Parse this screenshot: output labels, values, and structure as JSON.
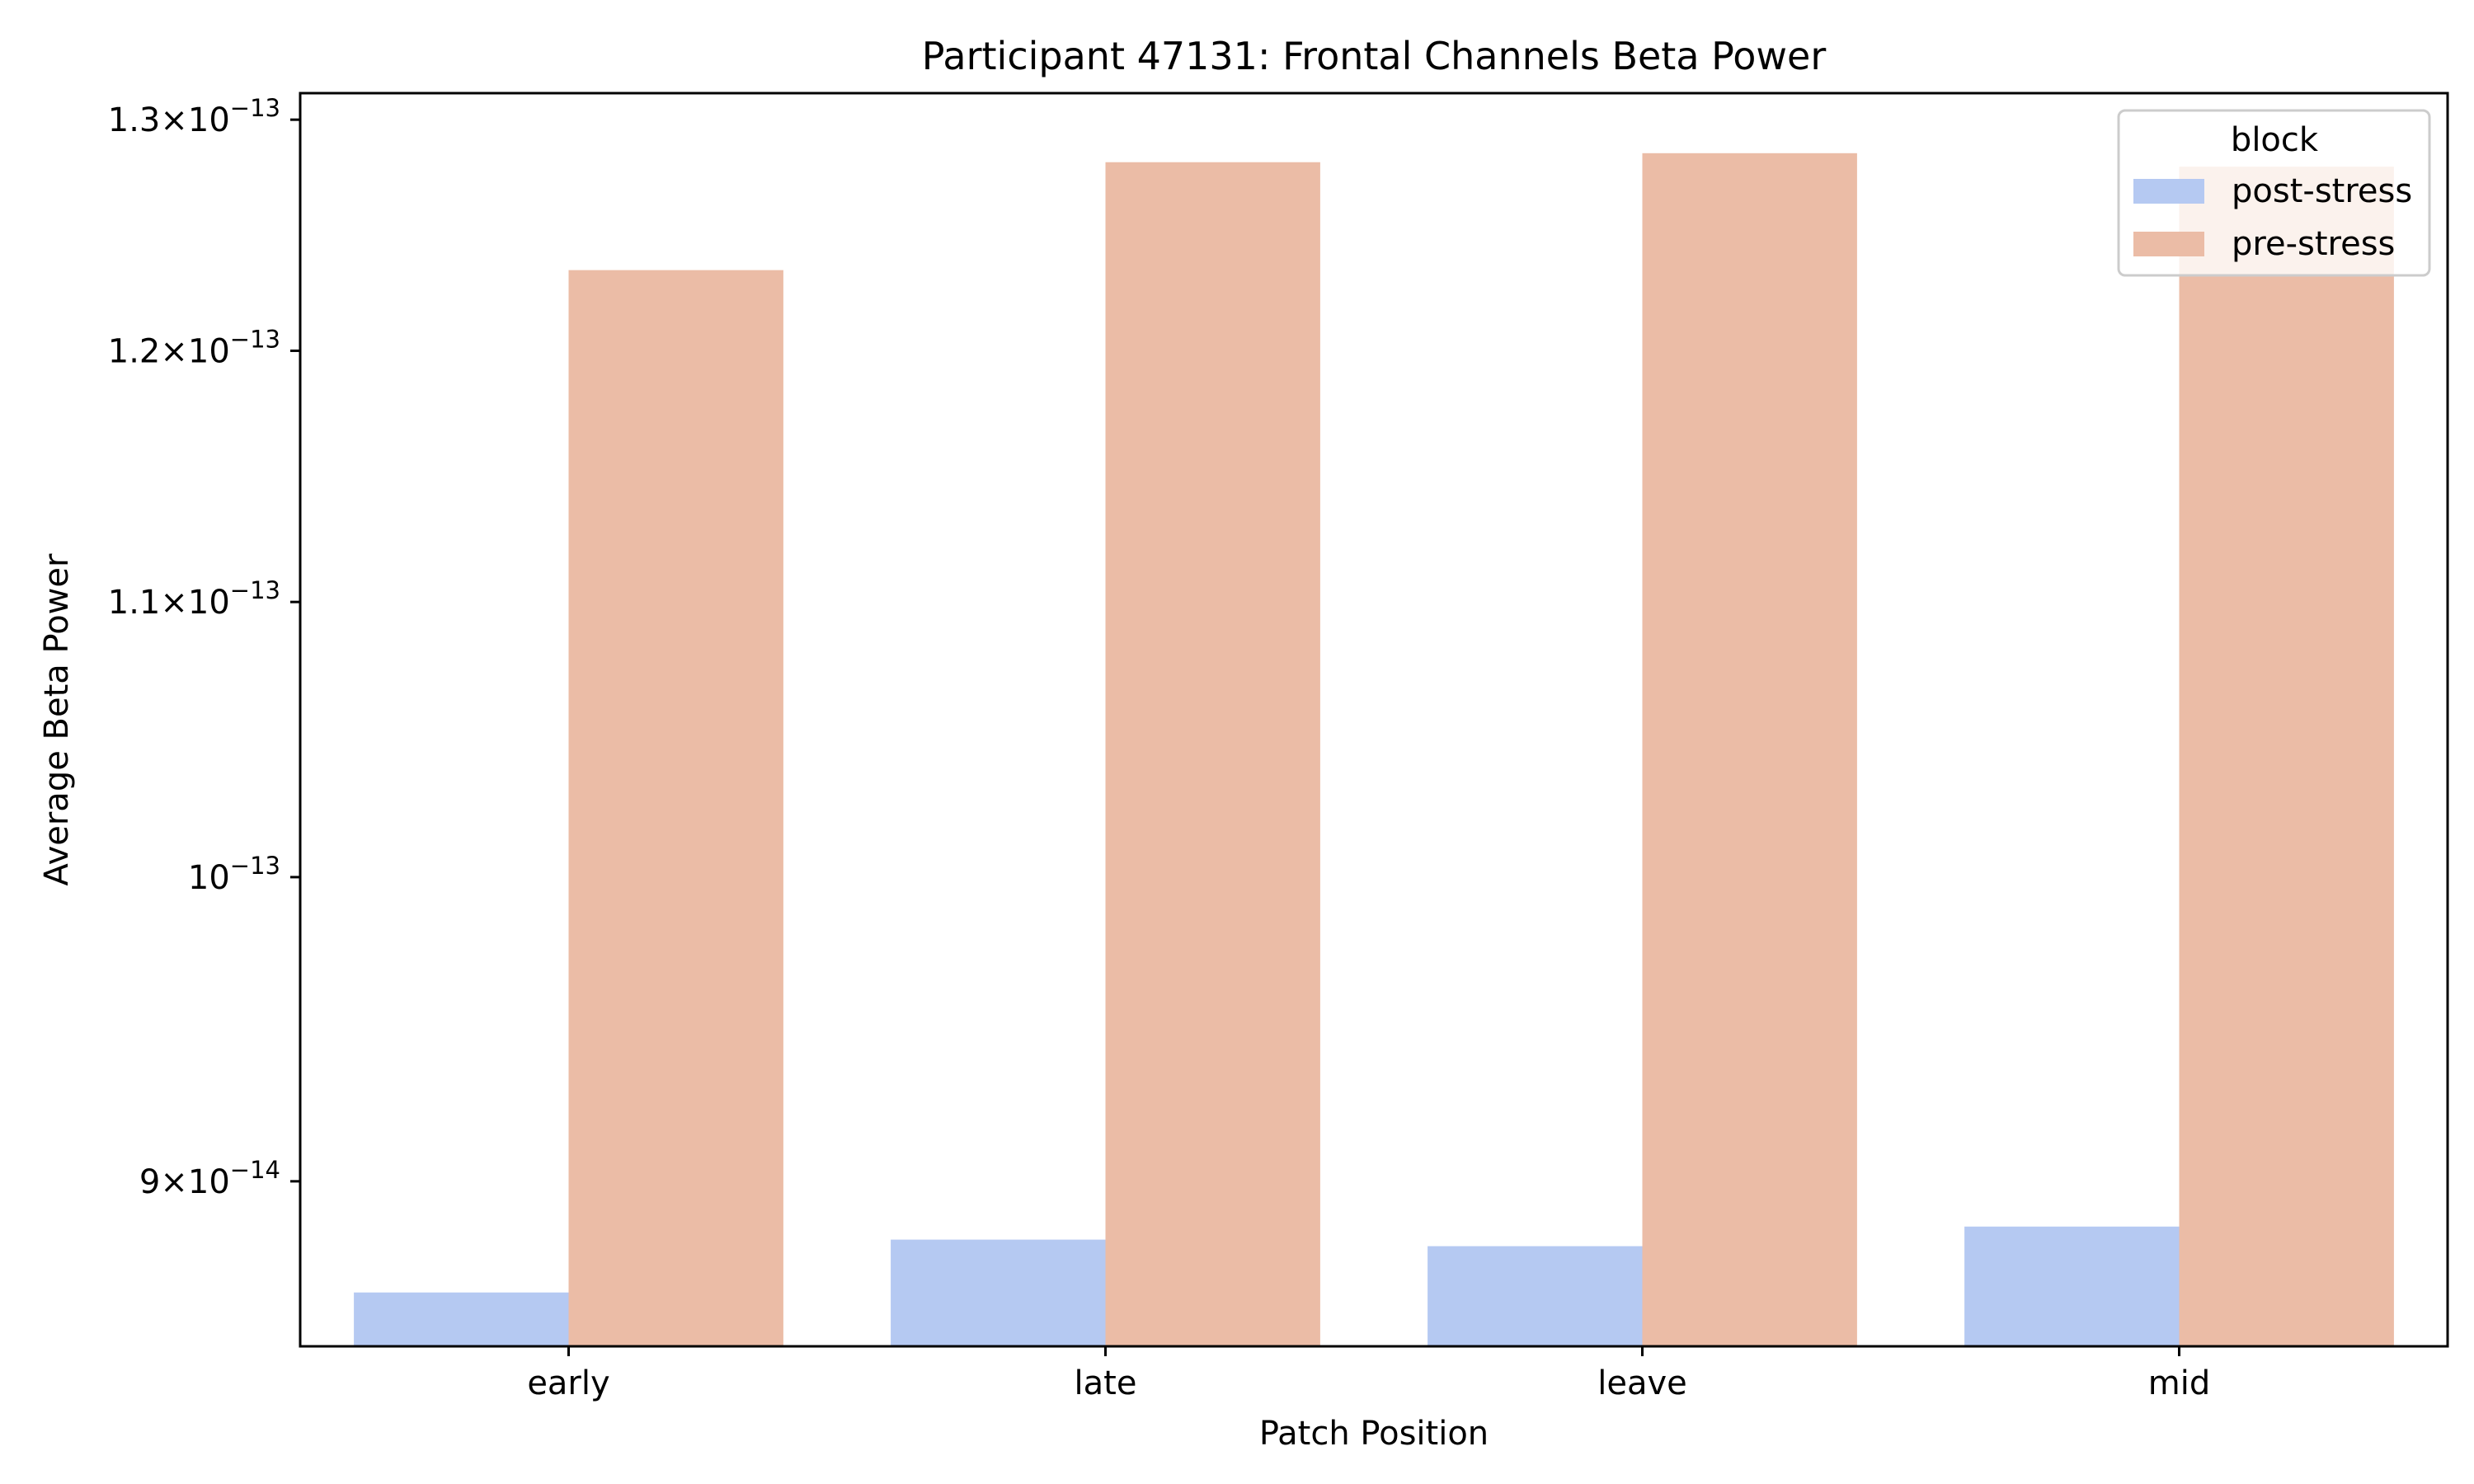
{
  "chart_data": {
    "type": "bar",
    "title": "Participant 47131: Frontal Channels Beta Power",
    "xlabel": "Patch Position",
    "ylabel": "Average Beta Power",
    "categories": [
      "early",
      "late",
      "leave",
      "mid"
    ],
    "series": [
      {
        "name": "post-stress",
        "color": "#b5c9f2",
        "values": [
          8.66e-14,
          8.82e-14,
          8.8e-14,
          8.86e-14
        ]
      },
      {
        "name": "pre-stress",
        "color": "#ebbca6",
        "values": [
          1.234e-13,
          1.281e-13,
          1.285e-13,
          1.279e-13
        ]
      }
    ],
    "y_scale": "log",
    "ylim": [
      8.5e-14,
      1.312e-13
    ],
    "y_ticks": [
      {
        "value": 9e-14,
        "mantissa": "9",
        "times": "×",
        "base": "10",
        "exp": "−14"
      },
      {
        "value": 1e-13,
        "mantissa": "",
        "times": "",
        "base": "10",
        "exp": "−13"
      },
      {
        "value": 1.1e-13,
        "mantissa": "1.1",
        "times": "×",
        "base": "10",
        "exp": "−13"
      },
      {
        "value": 1.2e-13,
        "mantissa": "1.2",
        "times": "×",
        "base": "10",
        "exp": "−13"
      },
      {
        "value": 1.3e-13,
        "mantissa": "1.3",
        "times": "×",
        "base": "10",
        "exp": "−13"
      }
    ],
    "legend": {
      "title": "block",
      "position": "top-right"
    },
    "grid": false
  }
}
